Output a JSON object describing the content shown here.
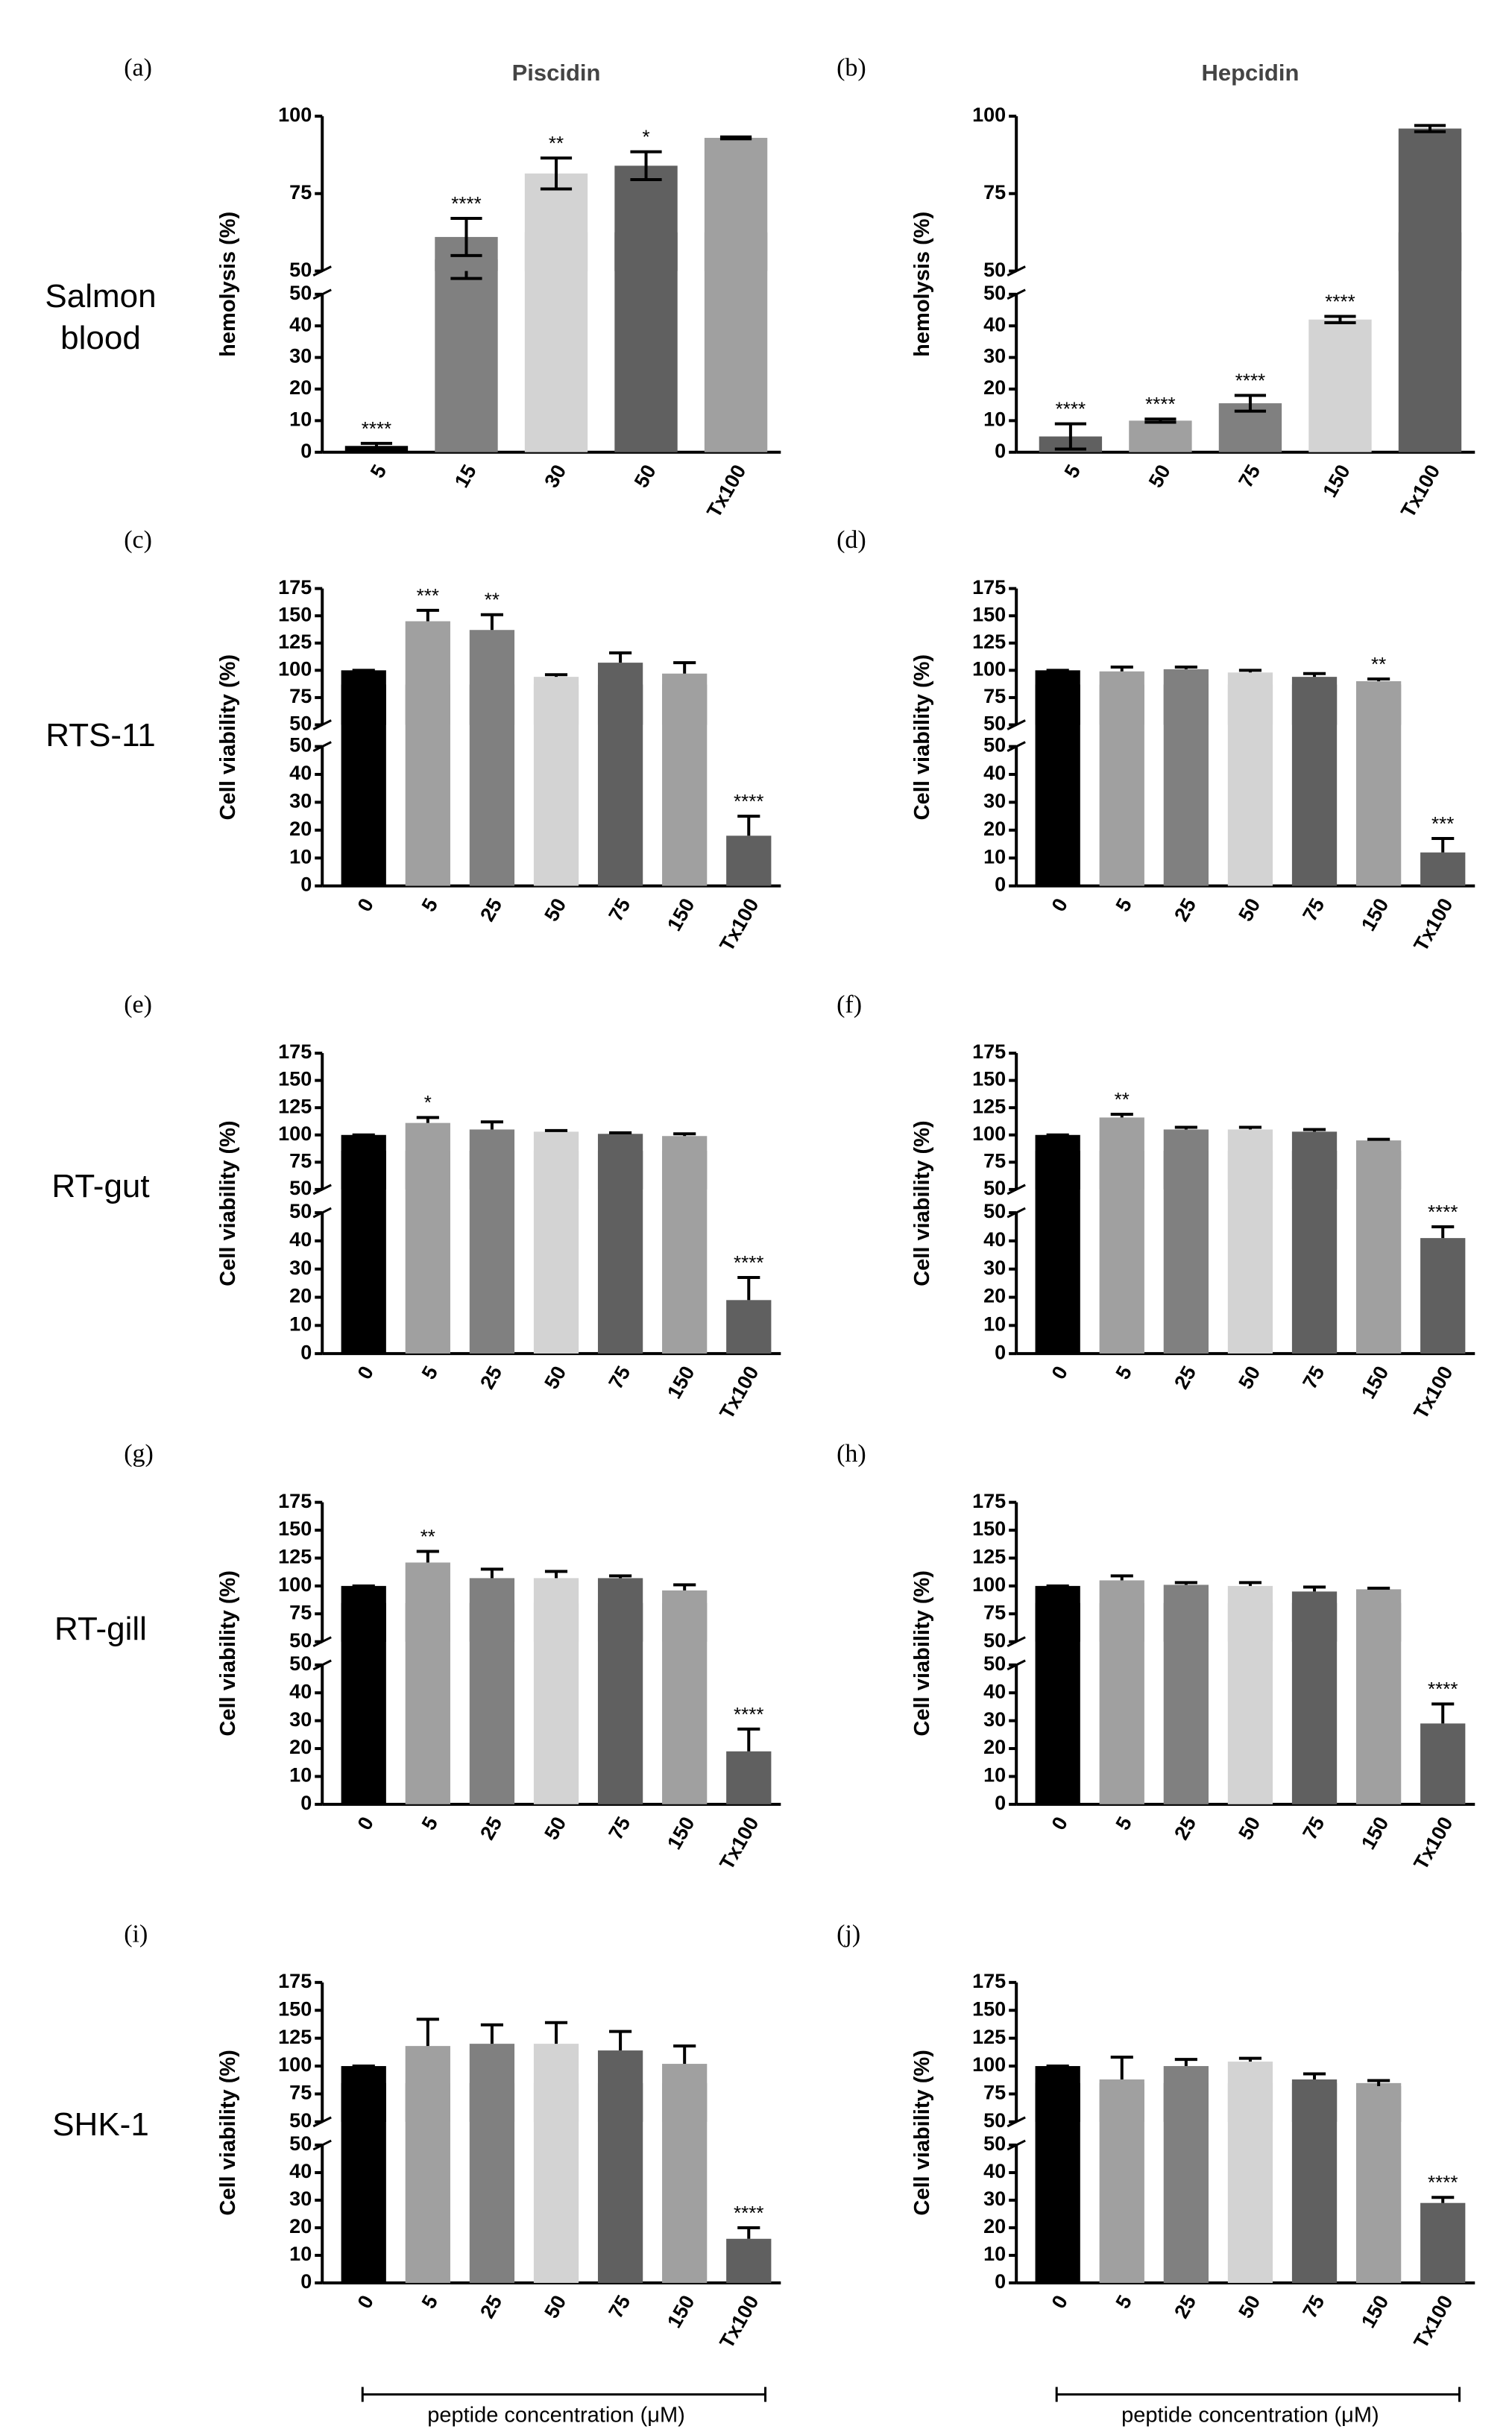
{
  "row_labels": [
    "Salmon blood",
    "RTS-11",
    "RT-gut",
    "RT-gill",
    "SHK-1"
  ],
  "chart_data": [
    {
      "type": "bar",
      "panel": "(a)",
      "title": "Piscidin",
      "ylabel": "hemolysis (%)",
      "error_bars": "both",
      "categories": [
        "5",
        "15",
        "30",
        "50",
        "Tx100"
      ],
      "values": [
        2,
        61,
        81.5,
        84,
        93
      ],
      "errors": [
        0.8,
        6,
        5,
        4.5,
        0.3
      ],
      "annotations": [
        "****",
        "****",
        "**",
        "*",
        null
      ],
      "colors": [
        "#000000",
        "#808080",
        "#d3d3d3",
        "#606060",
        "#a0a0a0"
      ],
      "segments": [
        {
          "ylim": [
            0,
            50
          ],
          "yticks": [
            0,
            10,
            20,
            30,
            40,
            50
          ]
        },
        {
          "ylim": [
            50,
            100
          ],
          "yticks": [
            50,
            75,
            100
          ]
        }
      ]
    },
    {
      "type": "bar",
      "panel": "(b)",
      "title": "Hepcidin",
      "ylabel": "hemolysis (%)",
      "error_bars": "both",
      "categories": [
        "5",
        "50",
        "75",
        "150",
        "Tx100"
      ],
      "values": [
        5,
        10,
        15.5,
        42,
        96
      ],
      "errors": [
        4,
        0.5,
        2.5,
        1,
        1
      ],
      "annotations": [
        "****",
        "****",
        "****",
        "****",
        null
      ],
      "colors": [
        "#606060",
        "#a0a0a0",
        "#808080",
        "#d3d3d3",
        "#606060"
      ],
      "segments": [
        {
          "ylim": [
            0,
            50
          ],
          "yticks": [
            0,
            10,
            20,
            30,
            40,
            50
          ]
        },
        {
          "ylim": [
            50,
            100
          ],
          "yticks": [
            50,
            75,
            100
          ]
        }
      ]
    },
    {
      "type": "bar",
      "panel": "(c)",
      "ylabel": "Cell viability (%)",
      "error_bars": "up",
      "categories": [
        "0",
        "5",
        "25",
        "50",
        "75",
        "150",
        "Tx100"
      ],
      "values": [
        100,
        145,
        137,
        94,
        107,
        97,
        18
      ],
      "errors": [
        0,
        10,
        14,
        2,
        9,
        10,
        7
      ],
      "annotations": [
        null,
        "***",
        "**",
        null,
        null,
        null,
        "****"
      ],
      "colors": [
        "#000000",
        "#a0a0a0",
        "#808080",
        "#d3d3d3",
        "#606060",
        "#a0a0a0",
        "#606060"
      ],
      "segments": [
        {
          "ylim": [
            0,
            50
          ],
          "yticks": [
            0,
            10,
            20,
            30,
            40,
            50
          ]
        },
        {
          "ylim": [
            50,
            175
          ],
          "yticks": [
            50,
            75,
            100,
            125,
            150,
            175
          ]
        }
      ]
    },
    {
      "type": "bar",
      "panel": "(d)",
      "ylabel": "Cell viability (%)",
      "error_bars": "up",
      "categories": [
        "0",
        "5",
        "25",
        "50",
        "75",
        "150",
        "Tx100"
      ],
      "values": [
        100,
        99,
        101,
        98,
        94,
        90,
        12
      ],
      "errors": [
        0,
        4,
        2,
        2,
        3,
        2,
        5
      ],
      "annotations": [
        null,
        null,
        null,
        null,
        null,
        "**",
        "***"
      ],
      "colors": [
        "#000000",
        "#a0a0a0",
        "#808080",
        "#d3d3d3",
        "#606060",
        "#a0a0a0",
        "#606060"
      ],
      "segments": [
        {
          "ylim": [
            0,
            50
          ],
          "yticks": [
            0,
            10,
            20,
            30,
            40,
            50
          ]
        },
        {
          "ylim": [
            50,
            175
          ],
          "yticks": [
            50,
            75,
            100,
            125,
            150,
            175
          ]
        }
      ]
    },
    {
      "type": "bar",
      "panel": "(e)",
      "ylabel": "Cell viability (%)",
      "error_bars": "up",
      "categories": [
        "0",
        "5",
        "25",
        "50",
        "75",
        "150",
        "Tx100"
      ],
      "values": [
        100,
        111,
        105,
        103,
        101,
        99,
        19
      ],
      "errors": [
        0,
        5,
        7,
        1,
        1,
        2,
        8
      ],
      "annotations": [
        null,
        "*",
        null,
        null,
        null,
        null,
        "****"
      ],
      "colors": [
        "#000000",
        "#a0a0a0",
        "#808080",
        "#d3d3d3",
        "#606060",
        "#a0a0a0",
        "#606060"
      ],
      "segments": [
        {
          "ylim": [
            0,
            50
          ],
          "yticks": [
            0,
            10,
            20,
            30,
            40,
            50
          ]
        },
        {
          "ylim": [
            50,
            175
          ],
          "yticks": [
            50,
            75,
            100,
            125,
            150,
            175
          ]
        }
      ]
    },
    {
      "type": "bar",
      "panel": "(f)",
      "ylabel": "Cell viability (%)",
      "error_bars": "up",
      "categories": [
        "0",
        "5",
        "25",
        "50",
        "75",
        "150",
        "Tx100"
      ],
      "values": [
        100,
        116,
        105,
        105,
        103,
        95,
        41
      ],
      "errors": [
        0,
        3,
        2,
        2,
        2,
        1,
        4
      ],
      "annotations": [
        null,
        "**",
        null,
        null,
        null,
        null,
        "****"
      ],
      "colors": [
        "#000000",
        "#a0a0a0",
        "#808080",
        "#d3d3d3",
        "#606060",
        "#a0a0a0",
        "#606060"
      ],
      "segments": [
        {
          "ylim": [
            0,
            50
          ],
          "yticks": [
            0,
            10,
            20,
            30,
            40,
            50
          ]
        },
        {
          "ylim": [
            50,
            175
          ],
          "yticks": [
            50,
            75,
            100,
            125,
            150,
            175
          ]
        }
      ]
    },
    {
      "type": "bar",
      "panel": "(g)",
      "ylabel": "Cell viability (%)",
      "error_bars": "up",
      "categories": [
        "0",
        "5",
        "25",
        "50",
        "75",
        "150",
        "Tx100"
      ],
      "values": [
        100,
        121,
        107,
        107,
        107,
        96,
        19
      ],
      "errors": [
        0,
        10,
        8,
        6,
        2,
        5,
        8
      ],
      "annotations": [
        null,
        "**",
        null,
        null,
        null,
        null,
        "****"
      ],
      "colors": [
        "#000000",
        "#a0a0a0",
        "#808080",
        "#d3d3d3",
        "#606060",
        "#a0a0a0",
        "#606060"
      ],
      "segments": [
        {
          "ylim": [
            0,
            50
          ],
          "yticks": [
            0,
            10,
            20,
            30,
            40,
            50
          ]
        },
        {
          "ylim": [
            50,
            175
          ],
          "yticks": [
            50,
            75,
            100,
            125,
            150,
            175
          ]
        }
      ]
    },
    {
      "type": "bar",
      "panel": "(h)",
      "ylabel": "Cell viability (%)",
      "error_bars": "up",
      "categories": [
        "0",
        "5",
        "25",
        "50",
        "75",
        "150",
        "Tx100"
      ],
      "values": [
        100,
        105,
        101,
        100,
        95,
        97,
        29
      ],
      "errors": [
        0,
        4,
        2,
        3,
        4,
        1,
        7
      ],
      "annotations": [
        null,
        null,
        null,
        null,
        null,
        null,
        "****"
      ],
      "colors": [
        "#000000",
        "#a0a0a0",
        "#808080",
        "#d3d3d3",
        "#606060",
        "#a0a0a0",
        "#606060"
      ],
      "segments": [
        {
          "ylim": [
            0,
            50
          ],
          "yticks": [
            0,
            10,
            20,
            30,
            40,
            50
          ]
        },
        {
          "ylim": [
            50,
            175
          ],
          "yticks": [
            50,
            75,
            100,
            125,
            150,
            175
          ]
        }
      ]
    },
    {
      "type": "bar",
      "panel": "(i)",
      "ylabel": "Cell viability (%)",
      "xlabel": "peptide concentration (μM)",
      "error_bars": "up",
      "categories": [
        "0",
        "5",
        "25",
        "50",
        "75",
        "150",
        "Tx100"
      ],
      "values": [
        100,
        118,
        120,
        120,
        114,
        102,
        16
      ],
      "errors": [
        0,
        24,
        17,
        19,
        17,
        16,
        4
      ],
      "annotations": [
        null,
        null,
        null,
        null,
        null,
        null,
        "****"
      ],
      "colors": [
        "#000000",
        "#a0a0a0",
        "#808080",
        "#d3d3d3",
        "#606060",
        "#a0a0a0",
        "#606060"
      ],
      "segments": [
        {
          "ylim": [
            0,
            50
          ],
          "yticks": [
            0,
            10,
            20,
            30,
            40,
            50
          ]
        },
        {
          "ylim": [
            50,
            175
          ],
          "yticks": [
            50,
            75,
            100,
            125,
            150,
            175
          ]
        }
      ]
    },
    {
      "type": "bar",
      "panel": "(j)",
      "ylabel": "Cell viability (%)",
      "xlabel": "peptide concentration (μM)",
      "error_bars": "up",
      "categories": [
        "0",
        "5",
        "25",
        "50",
        "75",
        "150",
        "Tx100"
      ],
      "values": [
        100,
        88,
        100,
        104,
        88,
        82,
        29
      ],
      "errors": [
        0,
        20,
        6,
        3,
        5,
        5,
        2
      ],
      "annotations": [
        null,
        null,
        null,
        null,
        null,
        null,
        "****"
      ],
      "colors": [
        "#000000",
        "#a0a0a0",
        "#808080",
        "#d3d3d3",
        "#606060",
        "#a0a0a0",
        "#606060"
      ],
      "segments": [
        {
          "ylim": [
            0,
            50
          ],
          "yticks": [
            0,
            10,
            20,
            30,
            40,
            50
          ]
        },
        {
          "ylim": [
            50,
            175
          ],
          "yticks": [
            50,
            75,
            100,
            125,
            150,
            175
          ]
        }
      ]
    }
  ]
}
